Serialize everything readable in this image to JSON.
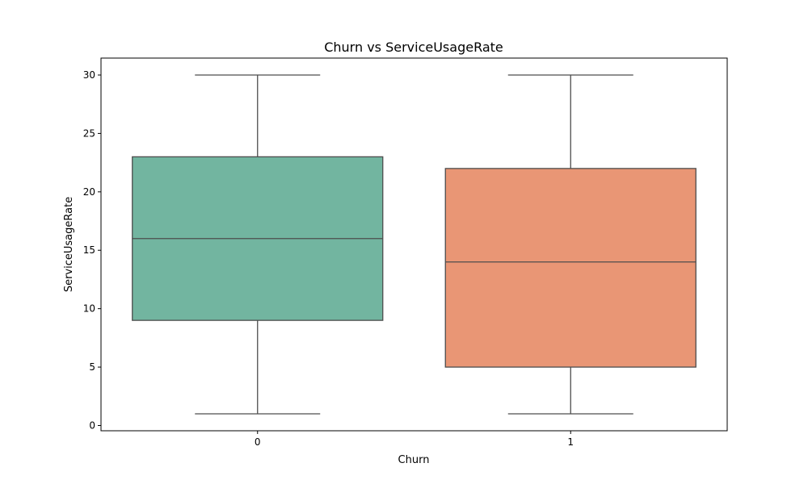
{
  "colors": {
    "box_0": "#72b5a0",
    "box_1": "#e99675",
    "line": "#4d4d4d",
    "axis": "#000000",
    "background": "#ffffff"
  },
  "chart_data": {
    "type": "box",
    "title": "Churn vs ServiceUsageRate",
    "xlabel": "Churn",
    "ylabel": "ServiceUsageRate",
    "categories": [
      "0",
      "1"
    ],
    "ylim": [
      -0.45,
      31.45
    ],
    "yticks": [
      0,
      5,
      10,
      15,
      20,
      25,
      30
    ],
    "ytick_labels": [
      "0",
      "5",
      "10",
      "15",
      "20",
      "25",
      "30"
    ],
    "grid": false,
    "boxes": [
      {
        "category": "0",
        "whisker_low": 1,
        "q1": 9,
        "median": 16,
        "q3": 23,
        "whisker_high": 30
      },
      {
        "category": "1",
        "whisker_low": 1,
        "q1": 5,
        "median": 14,
        "q3": 22,
        "whisker_high": 30
      }
    ]
  }
}
